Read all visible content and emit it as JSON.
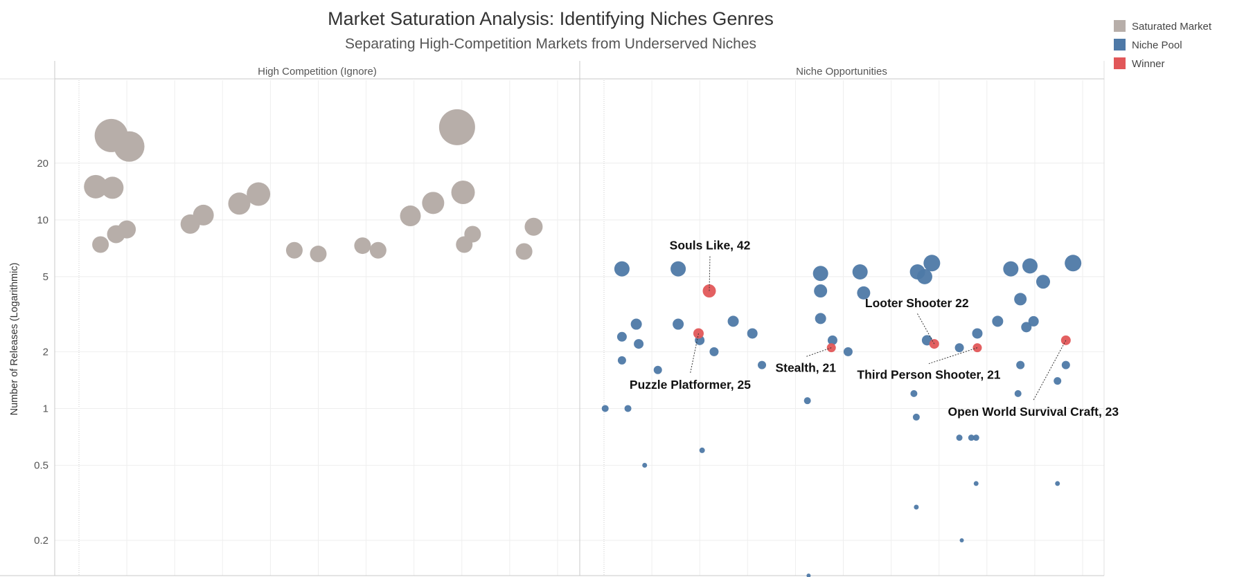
{
  "chart_data": {
    "type": "scatter",
    "title": "Market Saturation Analysis: Identifying Niches Genres",
    "subtitle": "Separating High-Competition Markets from Underserved Niches",
    "ylabel": "Number of Releases (Logarithmic)",
    "y_scale": "log",
    "ylim": [
      0.13,
      55
    ],
    "yticks": [
      {
        "value": 20,
        "label": "20"
      },
      {
        "value": 10,
        "label": "10"
      },
      {
        "value": 5,
        "label": "5"
      },
      {
        "value": 2,
        "label": "2"
      },
      {
        "value": 1,
        "label": "1"
      },
      {
        "value": 0.5,
        "label": "0.5"
      },
      {
        "value": 0.2,
        "label": "0.2"
      }
    ],
    "panels": [
      {
        "name": "High Competition (Ignore)"
      },
      {
        "name": "Niche Opportunities"
      }
    ],
    "legend": [
      {
        "name": "Saturated Market",
        "color": "#b7aea9"
      },
      {
        "name": "Niche Pool",
        "color": "#4e79a7"
      },
      {
        "name": "Winner",
        "color": "#e15759"
      }
    ],
    "series": [
      {
        "name": "Saturated Market",
        "panel": 0,
        "color": "#b7aea9",
        "points": [
          {
            "x": 1.35,
            "y": 28,
            "size": 24
          },
          {
            "x": 2.1,
            "y": 24.5,
            "size": 22
          },
          {
            "x": 0.7,
            "y": 15,
            "size": 17
          },
          {
            "x": 1.4,
            "y": 14.8,
            "size": 16
          },
          {
            "x": 0.9,
            "y": 7.4,
            "size": 12
          },
          {
            "x": 1.55,
            "y": 8.4,
            "size": 13
          },
          {
            "x": 2.0,
            "y": 8.9,
            "size": 13
          },
          {
            "x": 4.65,
            "y": 9.5,
            "size": 14
          },
          {
            "x": 5.2,
            "y": 10.6,
            "size": 15
          },
          {
            "x": 6.7,
            "y": 12.2,
            "size": 16
          },
          {
            "x": 7.5,
            "y": 13.7,
            "size": 17
          },
          {
            "x": 9.0,
            "y": 6.9,
            "size": 12
          },
          {
            "x": 10.0,
            "y": 6.6,
            "size": 12
          },
          {
            "x": 11.85,
            "y": 7.3,
            "size": 12
          },
          {
            "x": 12.5,
            "y": 6.9,
            "size": 12
          },
          {
            "x": 13.85,
            "y": 10.5,
            "size": 15
          },
          {
            "x": 14.8,
            "y": 12.3,
            "size": 16
          },
          {
            "x": 15.8,
            "y": 31,
            "size": 26
          },
          {
            "x": 16.1,
            "y": 7.4,
            "size": 12
          },
          {
            "x": 16.05,
            "y": 14,
            "size": 17
          },
          {
            "x": 16.45,
            "y": 8.4,
            "size": 12
          },
          {
            "x": 18.6,
            "y": 6.8,
            "size": 12
          },
          {
            "x": 19.0,
            "y": 9.2,
            "size": 13
          }
        ]
      },
      {
        "name": "Niche Pool",
        "panel": 1,
        "color": "#4e79a7",
        "points": [
          {
            "x": 0.75,
            "y": 5.5,
            "size": 11
          },
          {
            "x": 3.1,
            "y": 5.5,
            "size": 11
          },
          {
            "x": 0.75,
            "y": 2.4,
            "size": 7
          },
          {
            "x": 1.35,
            "y": 2.8,
            "size": 8
          },
          {
            "x": 1.45,
            "y": 2.2,
            "size": 7
          },
          {
            "x": 0.75,
            "y": 1.8,
            "size": 6
          },
          {
            "x": 2.25,
            "y": 1.6,
            "size": 6
          },
          {
            "x": 0.05,
            "y": 1.0,
            "size": 5
          },
          {
            "x": 1.0,
            "y": 1.0,
            "size": 5
          },
          {
            "x": 1.7,
            "y": 0.5,
            "size": 3.5
          },
          {
            "x": 3.1,
            "y": 2.8,
            "size": 8
          },
          {
            "x": 4.1,
            "y": 0.6,
            "size": 4
          },
          {
            "x": 4.0,
            "y": 2.3,
            "size": 7
          },
          {
            "x": 4.6,
            "y": 2.0,
            "size": 6.5
          },
          {
            "x": 5.4,
            "y": 2.9,
            "size": 8
          },
          {
            "x": 6.2,
            "y": 2.5,
            "size": 7.5
          },
          {
            "x": 6.6,
            "y": 1.7,
            "size": 6
          },
          {
            "x": 8.5,
            "y": 1.1,
            "size": 5
          },
          {
            "x": 9.05,
            "y": 5.2,
            "size": 11
          },
          {
            "x": 9.05,
            "y": 4.2,
            "size": 9.5
          },
          {
            "x": 9.05,
            "y": 3.0,
            "size": 8
          },
          {
            "x": 9.55,
            "y": 2.3,
            "size": 7
          },
          {
            "x": 10.2,
            "y": 2.0,
            "size": 6.5
          },
          {
            "x": 10.7,
            "y": 5.3,
            "size": 11
          },
          {
            "x": 10.85,
            "y": 4.1,
            "size": 9.5
          },
          {
            "x": 13.1,
            "y": 5.3,
            "size": 11
          },
          {
            "x": 13.4,
            "y": 5.0,
            "size": 11
          },
          {
            "x": 13.7,
            "y": 5.9,
            "size": 12
          },
          {
            "x": 13.5,
            "y": 2.3,
            "size": 7.5
          },
          {
            "x": 12.95,
            "y": 1.2,
            "size": 5
          },
          {
            "x": 13.05,
            "y": 0.9,
            "size": 5
          },
          {
            "x": 14.85,
            "y": 2.1,
            "size": 6.5
          },
          {
            "x": 15.6,
            "y": 2.5,
            "size": 7.5
          },
          {
            "x": 14.85,
            "y": 0.7,
            "size": 4.5
          },
          {
            "x": 15.35,
            "y": 0.7,
            "size": 4.5
          },
          {
            "x": 15.55,
            "y": 0.7,
            "size": 4.5
          },
          {
            "x": 15.55,
            "y": 0.4,
            "size": 3.5
          },
          {
            "x": 13.05,
            "y": 0.3,
            "size": 3.5
          },
          {
            "x": 14.95,
            "y": 0.2,
            "size": 3
          },
          {
            "x": 16.45,
            "y": 2.9,
            "size": 8
          },
          {
            "x": 17.0,
            "y": 5.5,
            "size": 11
          },
          {
            "x": 17.8,
            "y": 5.7,
            "size": 11
          },
          {
            "x": 18.35,
            "y": 4.7,
            "size": 10
          },
          {
            "x": 17.4,
            "y": 3.8,
            "size": 9
          },
          {
            "x": 17.65,
            "y": 2.7,
            "size": 7.5
          },
          {
            "x": 17.95,
            "y": 2.9,
            "size": 7.5
          },
          {
            "x": 17.4,
            "y": 1.7,
            "size": 6
          },
          {
            "x": 17.3,
            "y": 1.2,
            "size": 5
          },
          {
            "x": 18.95,
            "y": 1.4,
            "size": 5.5
          },
          {
            "x": 19.3,
            "y": 1.7,
            "size": 6
          },
          {
            "x": 19.6,
            "y": 5.9,
            "size": 12
          },
          {
            "x": 18.95,
            "y": 0.4,
            "size": 3.5
          },
          {
            "x": 8.55,
            "y": 0.13,
            "size": 3
          }
        ]
      },
      {
        "name": "Winner",
        "panel": 1,
        "color": "#e15759",
        "points": [
          {
            "x": 4.4,
            "y": 4.2,
            "size": 9.5,
            "label": "Souls Like, 42"
          },
          {
            "x": 3.95,
            "y": 2.5,
            "size": 7.5,
            "label": "Puzzle Platformer, 25"
          },
          {
            "x": 9.5,
            "y": 2.1,
            "size": 6.5,
            "label": "Stealth, 21"
          },
          {
            "x": 13.8,
            "y": 2.2,
            "size": 7,
            "label": "Looter Shooter 22"
          },
          {
            "x": 15.6,
            "y": 2.1,
            "size": 6.5,
            "label": "Third Person Shooter, 21"
          },
          {
            "x": 19.3,
            "y": 2.3,
            "size": 7,
            "label": "Open World Survival Craft, 23"
          }
        ]
      }
    ]
  }
}
